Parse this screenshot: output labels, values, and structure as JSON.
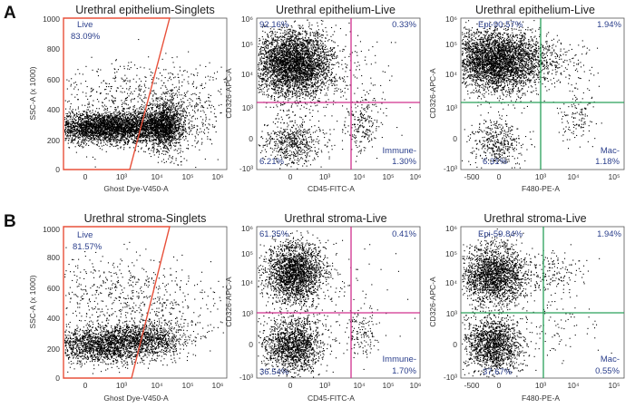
{
  "panel_letters": [
    "A",
    "B"
  ],
  "colors": {
    "gate_red": "#e8503a",
    "quad_magenta": "#d0318e",
    "quad_green": "#2aa05a",
    "dots": "#000000",
    "text_blue": "#2b3f8c"
  },
  "chart_data": [
    {
      "type": "scatter",
      "id": "A1",
      "title": "Urethral epithelium-Singlets",
      "xlabel": "Ghost Dye-V450-A",
      "ylabel": "SSC-A (x 1000)",
      "x_scale": "biexponential",
      "y_scale": "linear",
      "ylim": [
        0,
        1000
      ],
      "x_ticks": [
        "0",
        "10³",
        "10⁴",
        "10⁵",
        "10⁶"
      ],
      "y_ticks": [
        "0",
        "200",
        "400",
        "600",
        "800",
        "1000"
      ],
      "gate": {
        "type": "polygon",
        "name": "Live",
        "percent": "83.09%",
        "color": "#e8503a"
      }
    },
    {
      "type": "scatter",
      "id": "A2",
      "title": "Urethral epithelium-Live",
      "xlabel": "CD45-FITC-A",
      "ylabel": "CD326-APC-A",
      "x_scale": "biexponential",
      "y_scale": "biexponential",
      "x_ticks": [
        "0",
        "10³",
        "10⁴",
        "10⁵",
        "10⁶"
      ],
      "y_ticks": [
        "-10³",
        "0",
        "10³",
        "10⁴",
        "10⁵",
        "10⁶"
      ],
      "quadrant_color": "#d0318e",
      "quadrants": {
        "top_left": "92.16%",
        "top_right": "0.33%",
        "bottom_left": "6.21%",
        "bottom_right_name": "Immune-",
        "bottom_right": "1.30%"
      }
    },
    {
      "type": "scatter",
      "id": "A3",
      "title": "Urethral epithelium-Live",
      "xlabel": "F480-PE-A",
      "ylabel": "CD326-APC-A",
      "x_scale": "biexponential",
      "y_scale": "biexponential",
      "x_ticks": [
        "-500",
        "0",
        "10³",
        "10⁴",
        "10⁵"
      ],
      "y_ticks": [
        "-10³",
        "0",
        "10³",
        "10⁴",
        "10⁵",
        "10⁶"
      ],
      "quadrant_color": "#2aa05a",
      "quadrants": {
        "top_left": "Epi-90.57%",
        "top_right": "1.94%",
        "bottom_left": "6.31%",
        "bottom_right_name": "Mac-",
        "bottom_right": "1.18%"
      }
    },
    {
      "type": "scatter",
      "id": "B1",
      "title": "Urethral stroma-Singlets",
      "xlabel": "Ghost Dye-V450-A",
      "ylabel": "SSC-A (x 1000)",
      "x_scale": "biexponential",
      "y_scale": "linear",
      "ylim": [
        0,
        1000
      ],
      "x_ticks": [
        "0",
        "10³",
        "10⁴",
        "10⁵",
        "10⁶"
      ],
      "y_ticks": [
        "0",
        "200",
        "400",
        "600",
        "800",
        "1000"
      ],
      "gate": {
        "type": "polygon",
        "name": "Live",
        "percent": "81.57%",
        "color": "#e8503a"
      }
    },
    {
      "type": "scatter",
      "id": "B2",
      "title": "Urethral stroma-Live",
      "xlabel": "CD45-FITC-A",
      "ylabel": "CD326-APC-A",
      "x_scale": "biexponential",
      "y_scale": "biexponential",
      "x_ticks": [
        "0",
        "10³",
        "10⁴",
        "10⁵",
        "10⁶"
      ],
      "y_ticks": [
        "-10³",
        "0",
        "10³",
        "10⁴",
        "10⁵",
        "10⁶"
      ],
      "quadrant_color": "#d0318e",
      "quadrants": {
        "top_left": "61.35%",
        "top_right": "0.41%",
        "bottom_left": "36.54%",
        "bottom_right_name": "Immune-",
        "bottom_right": "1.70%"
      }
    },
    {
      "type": "scatter",
      "id": "B3",
      "title": "Urethral stroma-Live",
      "xlabel": "F480-PE-A",
      "ylabel": "CD326-APC-A",
      "x_scale": "biexponential",
      "y_scale": "biexponential",
      "x_ticks": [
        "-500",
        "0",
        "10³",
        "10⁴",
        "10⁵"
      ],
      "y_ticks": [
        "-10³",
        "0",
        "10³",
        "10⁴",
        "10⁵",
        "10⁶"
      ],
      "quadrant_color": "#2aa05a",
      "quadrants": {
        "top_left": "Epi-59.84%",
        "top_right": "1.94%",
        "bottom_left": "37.67%",
        "bottom_right_name": "Mac-",
        "bottom_right": "0.55%"
      }
    }
  ]
}
